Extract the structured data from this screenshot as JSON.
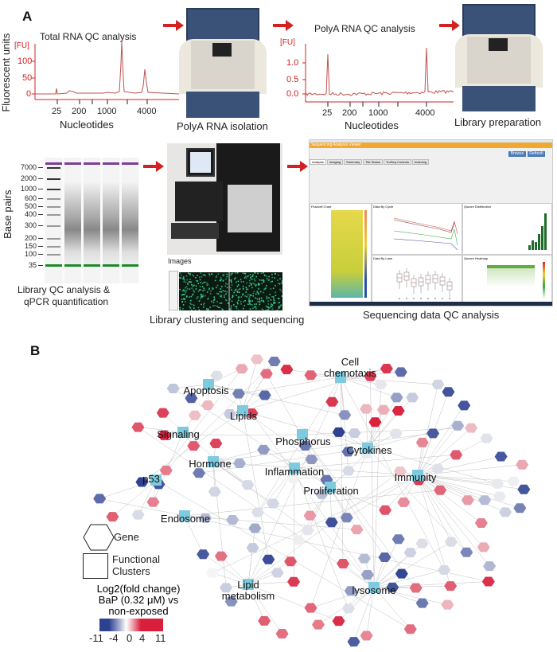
{
  "panel_a": {
    "label": "A",
    "total_rna": {
      "title": "Total RNA QC analysis",
      "unit": "[FU]",
      "ylabel": "Fluorescent units",
      "yticks": [
        "100",
        "50",
        "0"
      ],
      "xticks": [
        "25",
        "200",
        "1000",
        "4000"
      ],
      "xlabel": "Nucleotides"
    },
    "polya_isolation": "PolyA  RNA  isolation",
    "polya_qc": {
      "title": "PolyA  RNA  QC analysis",
      "unit": "[FU]",
      "yticks": [
        "1.0",
        "0.5",
        "0.0"
      ],
      "xticks": [
        "25",
        "200",
        "1000",
        "4000"
      ],
      "xlabel": "Nucleotides"
    },
    "library_prep": "Library preparation",
    "gel": {
      "ylabel": "Base pairs",
      "bp": [
        "7000",
        "2000",
        "1000",
        "600",
        "500",
        "400",
        "300",
        "200",
        "150",
        "100",
        "35"
      ],
      "caption_1": "Library QC analysis  &",
      "caption_2": "qPCR quantification"
    },
    "sequencing": {
      "images_label": "Images",
      "caption": "Library clustering  and sequencing"
    },
    "viewer": {
      "title": "Sequencing Analysis Viewer",
      "browse": "Browse",
      "refresh": "Refresh",
      "tabs": [
        "Analysis",
        "Imaging",
        "Summary",
        "Tile Status",
        "TruSeq Controls",
        "Indexing"
      ],
      "panels": [
        "Flowcell Chart",
        "Data By Cycle",
        "Qscore Distribution",
        "Data By Lane",
        "Qscore Heatmap"
      ],
      "caption": "Sequencing  data  QC analysis"
    },
    "colors": {
      "arrow": "#d42020",
      "trace": "#c0504d"
    }
  },
  "panel_b": {
    "label": "B",
    "clusters": [
      "Apoptosis",
      "Cell\nchemotaxis",
      "Lipids",
      "Signaling",
      "Phosphorus",
      "Cytokines",
      "Hormone",
      "Inflammation",
      "Immunity",
      "p53",
      "Proliferation",
      "Endosome",
      "Lipid\nmetabolism",
      "lysosome"
    ],
    "legend": {
      "gene": "Gene",
      "clusters_1": "Functional",
      "clusters_2": "Clusters",
      "scale_title_1": "Log2(fold change)",
      "scale_title_2": "BaP (0.32 μM) vs",
      "scale_title_3": "non-exposed",
      "ticks": [
        "-11",
        "-4",
        "0",
        "4",
        "11"
      ]
    },
    "colors": {
      "low": "#2d4191",
      "mid": "#ffffff",
      "high": "#d91f3c",
      "cluster": "#7ecbe0"
    }
  }
}
